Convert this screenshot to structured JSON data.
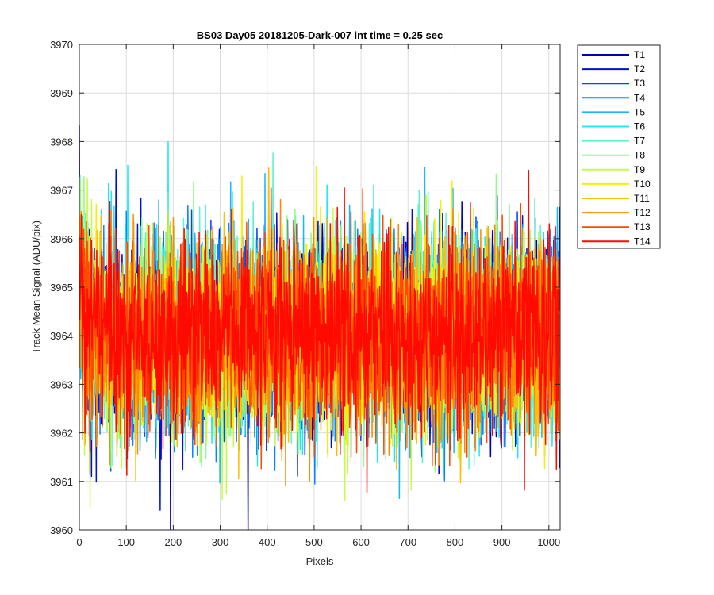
{
  "chart_data": {
    "type": "line",
    "title": "BS03 Day05 20181205-Dark-007 int time = 0.25 sec",
    "xlabel": "Pixels",
    "ylabel": "Track Mean Signal (ADU/pix)",
    "xlim": [
      0,
      1024
    ],
    "ylim": [
      3960,
      3970
    ],
    "xticks": [
      0,
      100,
      200,
      300,
      400,
      500,
      600,
      700,
      800,
      900,
      1000
    ],
    "yticks": [
      3960,
      3961,
      3962,
      3963,
      3964,
      3965,
      3966,
      3967,
      3968,
      3969,
      3970
    ],
    "grid": true,
    "legend_position": "outside-top-right",
    "n_points": 1024,
    "series": [
      {
        "name": "T1",
        "color": "#0000B4",
        "mean": 3964.0,
        "amplitude": 1.1
      },
      {
        "name": "T2",
        "color": "#0011D6",
        "mean": 3964.0,
        "amplitude": 1.1
      },
      {
        "name": "T3",
        "color": "#0047F0",
        "mean": 3964.0,
        "amplitude": 1.1
      },
      {
        "name": "T4",
        "color": "#0A84FF",
        "mean": 3964.0,
        "amplitude": 1.1
      },
      {
        "name": "T5",
        "color": "#1AB6FF",
        "mean": 3964.0,
        "amplitude": 1.1
      },
      {
        "name": "T6",
        "color": "#22E6F6",
        "mean": 3964.0,
        "amplitude": 1.1
      },
      {
        "name": "T7",
        "color": "#5EF2D0",
        "mean": 3964.0,
        "amplitude": 1.1
      },
      {
        "name": "T8",
        "color": "#8CFB8A",
        "mean": 3964.0,
        "amplitude": 1.1
      },
      {
        "name": "T9",
        "color": "#C5FC47",
        "mean": 3964.0,
        "amplitude": 1.1
      },
      {
        "name": "T10",
        "color": "#F4F000",
        "mean": 3964.0,
        "amplitude": 1.1
      },
      {
        "name": "T11",
        "color": "#FFBE00",
        "mean": 3964.0,
        "amplitude": 1.1
      },
      {
        "name": "T12",
        "color": "#FF8A00",
        "mean": 3964.0,
        "amplitude": 1.1
      },
      {
        "name": "T13",
        "color": "#FF4A00",
        "mean": 3964.0,
        "amplitude": 1.1
      },
      {
        "name": "T14",
        "color": "#FF0A00",
        "mean": 3964.0,
        "amplitude": 1.1
      }
    ]
  }
}
